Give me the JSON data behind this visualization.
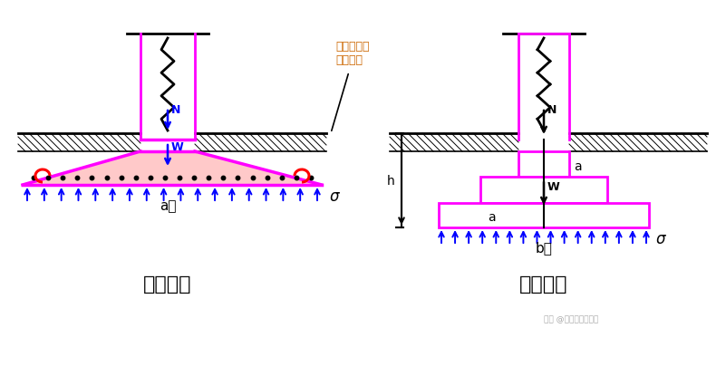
{
  "bg_color": "#ffffff",
  "magenta": "#FF00FF",
  "blue": "#0000FF",
  "black": "#000000",
  "red": "#FF0000",
  "orange_brown": "#CC6600",
  "label_a": "a）",
  "label_b": "b）",
  "title_left": "柔性基础",
  "title_right": "刚性基础",
  "ann_line1": "地面或最大",
  "ann_line2": "冲刷线处",
  "sigma": "σ",
  "N_label": "N",
  "W_label": "W",
  "h_label": "h",
  "a_label": "a",
  "watermark": "实案 @建筑工程一点通"
}
